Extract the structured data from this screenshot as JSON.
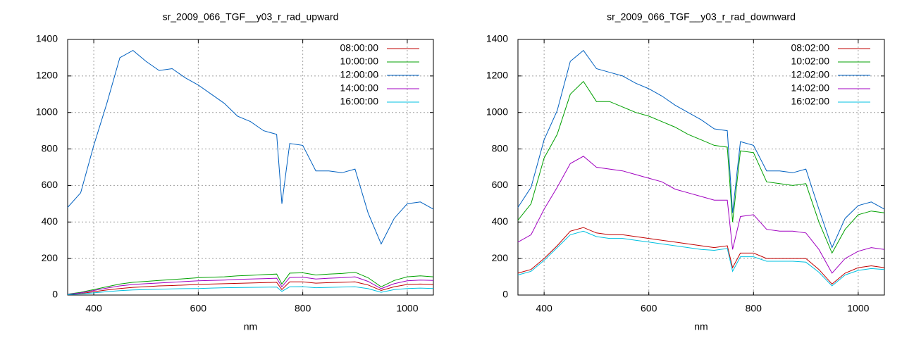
{
  "chart_data": [
    {
      "type": "line",
      "title": "sr_2009_066_TGF__y03_r_rad_upward",
      "xlabel": "nm",
      "x": [
        350,
        375,
        400,
        425,
        450,
        475,
        500,
        525,
        550,
        575,
        600,
        625,
        650,
        675,
        700,
        725,
        750,
        760,
        775,
        800,
        825,
        850,
        875,
        900,
        925,
        950,
        975,
        1000,
        1025,
        1050
      ],
      "xlim": [
        350,
        1050
      ],
      "ylim": [
        0,
        1400
      ],
      "xticks": [
        400,
        600,
        800,
        1000
      ],
      "yticks": [
        0,
        200,
        400,
        600,
        800,
        1000,
        1200,
        1400
      ],
      "grid": true,
      "legend": "upper right",
      "series": [
        {
          "name": "08:00:00",
          "color": "#c00000",
          "values": [
            3,
            8,
            18,
            28,
            36,
            42,
            46,
            50,
            52,
            55,
            58,
            60,
            62,
            64,
            66,
            68,
            70,
            30,
            72,
            72,
            65,
            68,
            70,
            72,
            55,
            25,
            45,
            58,
            60,
            58
          ]
        },
        {
          "name": "10:00:00",
          "color": "#00a000",
          "values": [
            5,
            15,
            30,
            45,
            60,
            70,
            75,
            80,
            85,
            90,
            95,
            98,
            100,
            105,
            108,
            112,
            115,
            60,
            120,
            122,
            110,
            115,
            118,
            125,
            95,
            45,
            80,
            100,
            105,
            100
          ]
        },
        {
          "name": "12:00:00",
          "color": "#0060c0",
          "values": [
            480,
            560,
            820,
            1050,
            1300,
            1340,
            1280,
            1230,
            1240,
            1190,
            1150,
            1100,
            1050,
            980,
            950,
            900,
            880,
            500,
            830,
            820,
            680,
            680,
            670,
            690,
            450,
            280,
            420,
            500,
            510,
            470
          ]
        },
        {
          "name": "14:00:00",
          "color": "#a000c0",
          "values": [
            4,
            12,
            25,
            38,
            50,
            58,
            62,
            66,
            70,
            74,
            78,
            80,
            82,
            86,
            88,
            90,
            92,
            45,
            96,
            98,
            88,
            92,
            95,
            100,
            75,
            35,
            62,
            78,
            82,
            80
          ]
        },
        {
          "name": "16:00:00",
          "color": "#00c0e0",
          "values": [
            2,
            6,
            12,
            18,
            24,
            28,
            30,
            32,
            34,
            35,
            36,
            38,
            40,
            41,
            42,
            43,
            44,
            20,
            45,
            46,
            40,
            42,
            44,
            45,
            35,
            15,
            30,
            36,
            38,
            36
          ]
        }
      ]
    },
    {
      "type": "line",
      "title": "sr_2009_066_TGF__y03_r_rad_downward",
      "xlabel": "nm",
      "x": [
        350,
        375,
        400,
        425,
        450,
        475,
        500,
        525,
        550,
        575,
        600,
        625,
        650,
        675,
        700,
        725,
        750,
        760,
        775,
        800,
        825,
        850,
        875,
        900,
        925,
        950,
        975,
        1000,
        1025,
        1050
      ],
      "xlim": [
        350,
        1050
      ],
      "ylim": [
        0,
        1400
      ],
      "xticks": [
        400,
        600,
        800,
        1000
      ],
      "yticks": [
        0,
        200,
        400,
        600,
        800,
        1000,
        1200,
        1400
      ],
      "grid": true,
      "legend": "upper right",
      "series": [
        {
          "name": "08:02:00",
          "color": "#c00000",
          "values": [
            120,
            140,
            200,
            270,
            350,
            370,
            340,
            330,
            330,
            320,
            310,
            300,
            290,
            280,
            270,
            260,
            270,
            150,
            230,
            230,
            200,
            200,
            200,
            200,
            140,
            60,
            120,
            150,
            160,
            150
          ]
        },
        {
          "name": "10:02:00",
          "color": "#00a000",
          "values": [
            410,
            500,
            750,
            880,
            1100,
            1170,
            1060,
            1060,
            1030,
            1000,
            980,
            950,
            920,
            880,
            850,
            820,
            810,
            400,
            790,
            780,
            620,
            610,
            600,
            610,
            400,
            230,
            360,
            440,
            460,
            450
          ]
        },
        {
          "name": "12:02:00",
          "color": "#0060c0",
          "values": [
            480,
            590,
            850,
            1010,
            1280,
            1340,
            1240,
            1220,
            1200,
            1160,
            1130,
            1090,
            1040,
            1000,
            960,
            910,
            900,
            450,
            840,
            820,
            680,
            680,
            670,
            690,
            470,
            260,
            420,
            490,
            510,
            470
          ]
        },
        {
          "name": "14:02:00",
          "color": "#a000c0",
          "values": [
            290,
            330,
            470,
            590,
            720,
            760,
            700,
            690,
            680,
            660,
            640,
            620,
            580,
            560,
            540,
            520,
            520,
            250,
            430,
            440,
            360,
            350,
            350,
            340,
            250,
            120,
            200,
            240,
            260,
            250
          ]
        },
        {
          "name": "16:02:00",
          "color": "#00c0e0",
          "values": [
            110,
            130,
            190,
            260,
            330,
            350,
            320,
            310,
            310,
            300,
            290,
            280,
            270,
            260,
            250,
            245,
            255,
            130,
            210,
            210,
            185,
            185,
            185,
            180,
            125,
            50,
            110,
            135,
            145,
            140
          ]
        }
      ]
    }
  ]
}
